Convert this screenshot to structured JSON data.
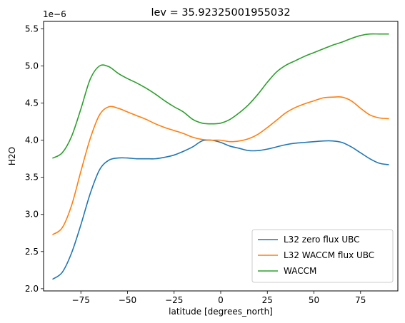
{
  "chart_data": {
    "type": "line",
    "title": "lev = 35.92325001955032",
    "xlabel": "latitude [degrees_north]",
    "ylabel": "H2O",
    "offset_text": "1e−6",
    "xlim": [
      -95,
      95
    ],
    "ylim": [
      1.97,
      5.6
    ],
    "xticks": [
      -75,
      -50,
      -25,
      0,
      25,
      50,
      75
    ],
    "xtick_labels": [
      "−75",
      "−50",
      "−25",
      "0",
      "25",
      "50",
      "75"
    ],
    "yticks": [
      2.0,
      2.5,
      3.0,
      3.5,
      4.0,
      4.5,
      5.0,
      5.5
    ],
    "ytick_labels": [
      "2.0",
      "2.5",
      "3.0",
      "3.5",
      "4.0",
      "4.5",
      "5.0",
      "5.5"
    ],
    "grid": false,
    "legend_position": "lower right",
    "x": [
      -90,
      -85,
      -80,
      -75,
      -70,
      -65,
      -60,
      -55,
      -50,
      -45,
      -40,
      -35,
      -30,
      -25,
      -20,
      -15,
      -10,
      -5,
      0,
      5,
      10,
      15,
      20,
      25,
      30,
      35,
      40,
      45,
      50,
      55,
      60,
      65,
      70,
      75,
      80,
      85,
      90
    ],
    "series": [
      {
        "name": "L32 zero flux UBC",
        "color": "#1f77b4",
        "values": [
          2.13,
          2.22,
          2.48,
          2.86,
          3.28,
          3.6,
          3.73,
          3.76,
          3.76,
          3.75,
          3.75,
          3.75,
          3.77,
          3.8,
          3.85,
          3.91,
          3.99,
          4.0,
          3.97,
          3.92,
          3.89,
          3.86,
          3.86,
          3.88,
          3.91,
          3.94,
          3.96,
          3.97,
          3.98,
          3.99,
          3.99,
          3.97,
          3.91,
          3.83,
          3.75,
          3.69,
          3.67
        ]
      },
      {
        "name": "L32 WACCM flux UBC",
        "color": "#ff7f0e",
        "values": [
          2.73,
          2.82,
          3.12,
          3.58,
          4.02,
          4.34,
          4.45,
          4.43,
          4.38,
          4.33,
          4.28,
          4.22,
          4.17,
          4.13,
          4.09,
          4.04,
          4.01,
          4.0,
          4.0,
          3.98,
          3.99,
          4.02,
          4.08,
          4.17,
          4.27,
          4.37,
          4.44,
          4.49,
          4.53,
          4.57,
          4.58,
          4.58,
          4.53,
          4.43,
          4.34,
          4.3,
          4.29
        ]
      },
      {
        "name": "WACCM",
        "color": "#2ca02c",
        "values": [
          3.76,
          3.83,
          4.05,
          4.42,
          4.82,
          5.0,
          4.99,
          4.9,
          4.83,
          4.77,
          4.7,
          4.62,
          4.53,
          4.45,
          4.38,
          4.28,
          4.23,
          4.22,
          4.23,
          4.28,
          4.37,
          4.48,
          4.62,
          4.78,
          4.92,
          5.01,
          5.07,
          5.13,
          5.18,
          5.23,
          5.28,
          5.32,
          5.37,
          5.41,
          5.43,
          5.43,
          5.43
        ]
      }
    ]
  }
}
